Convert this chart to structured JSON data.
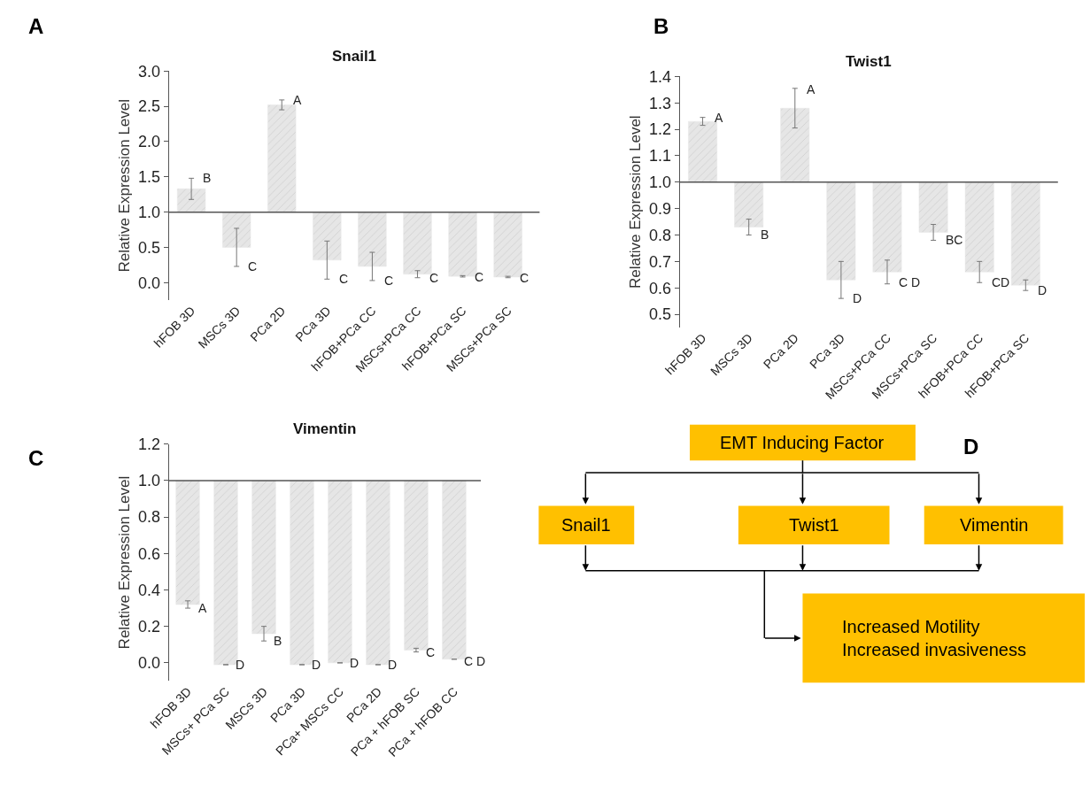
{
  "chart_data": [
    {
      "type": "bar",
      "title": "Snail1",
      "ylabel": "Relative Expression Level",
      "categories": [
        "hFOB 3D",
        "MSCs 3D",
        "PCa 2D",
        "PCa 3D",
        "hFOB+PCa CC",
        "MSCs+PCa CC",
        "hFOB+PCa SC",
        "MSCs+PCa SC"
      ],
      "base": [
        1.0,
        1.0,
        1.0,
        1.0,
        1.0,
        1.0,
        1.0,
        1.0
      ],
      "values": [
        0.33,
        -0.5,
        1.52,
        -0.68,
        -0.77,
        -0.88,
        -0.91,
        -0.92
      ],
      "errors": [
        0.15,
        0.27,
        0.07,
        0.27,
        0.2,
        0.05,
        0.01,
        0.01
      ],
      "color": "#e6e6e6",
      "ylim": [
        -0.25,
        3.0
      ],
      "yticks": [
        {
          "value": 0,
          "label": "0.0"
        },
        0.5,
        {
          "value": 1,
          "label": "1.0"
        },
        1.5,
        {
          "value": 2,
          "label": "2.0"
        },
        2.5,
        {
          "value": 3,
          "label": "3.0"
        }
      ],
      "ref_lines": [
        {
          "axis": "y",
          "value": 1.0,
          "color": "#555555"
        }
      ],
      "annotations": [
        "A",
        {
          "text": "B",
          "x": "hFOB 3D",
          "y": 1.48
        },
        {
          "text": "C",
          "x": "MSCs 3D",
          "y": 0.23
        },
        {
          "text": "A",
          "x": "PCa 2D",
          "y": 2.59
        },
        {
          "text": "C",
          "x": "PCa 3D",
          "y": 0.05
        },
        {
          "text": "C",
          "x": "hFOB+PCa CC",
          "y": 0.03
        },
        {
          "text": "C",
          "x": "MSCs+PCa CC",
          "y": 0.07
        },
        {
          "text": "C",
          "x": "hFOB+PCa SC",
          "y": 0.08
        },
        {
          "text": "C",
          "x": "MSCs+PCa SC",
          "y": 0.07
        }
      ]
    },
    {
      "type": "bar",
      "title": "Twist1",
      "ylabel": "Relative Expression Level",
      "categories": [
        "hFOB 3D",
        "MSCs 3D",
        "PCa 2D",
        "PCa 3D",
        "MSCs+PCa CC",
        "MSCs+PCa SC",
        "hFOB+PCa CC",
        "hFOB+PCa SC"
      ],
      "base": [
        1.0,
        1.0,
        1.0,
        1.0,
        1.0,
        1.0,
        1.0,
        1.0
      ],
      "values": [
        0.23,
        -0.17,
        0.28,
        -0.37,
        -0.34,
        -0.19,
        -0.34,
        -0.39
      ],
      "errors": [
        0.015,
        0.03,
        0.075,
        0.07,
        0.045,
        0.03,
        0.04,
        0.02
      ],
      "color": "#e6e6e6",
      "ylim": [
        0.45,
        1.4
      ],
      "yticks": [
        0.5,
        0.6,
        0.7,
        0.8,
        0.9,
        {
          "value": 1,
          "label": "1.0"
        },
        1.1,
        1.2,
        1.3,
        1.4
      ],
      "ref_lines": [
        {
          "axis": "y",
          "value": 1.0,
          "color": "#555555"
        }
      ],
      "annotations": [
        "B",
        {
          "text": "A",
          "x": "hFOB 3D",
          "y": 1.245
        },
        {
          "text": "B",
          "x": "MSCs 3D",
          "y": 0.8
        },
        {
          "text": "A",
          "x": "PCa 2D",
          "y": 1.35
        },
        {
          "text": "D",
          "x": "PCa 3D",
          "y": 0.56
        },
        {
          "text": "C D",
          "x": "MSCs+PCa CC",
          "y": 0.62
        },
        {
          "text": "BC",
          "x": "MSCs+PCa SC",
          "y": 0.78
        },
        {
          "text": "CD",
          "x": "hFOB+PCa CC",
          "y": 0.62
        },
        {
          "text": "D",
          "x": "hFOB+PCa SC",
          "y": 0.59
        }
      ]
    },
    {
      "type": "bar",
      "title": "Vimentin",
      "ylabel": "Relative Expression Level",
      "categories": [
        "hFOB 3D",
        "MSCs+ PCa SC",
        "MSCs 3D",
        "PCa 3D",
        "PCa+ MSCs CC",
        "PCa 2D",
        "PCa + hFOB SC",
        "PCa + hFOB CC"
      ],
      "base": [
        1.0,
        1.0,
        1.0,
        1.0,
        1.0,
        1.0,
        1.0,
        1.0
      ],
      "values": [
        -0.68,
        -1.01,
        -0.84,
        -1.01,
        -1.0,
        -1.01,
        -0.93,
        -0.98
      ],
      "errors": [
        0.02,
        null,
        0.04,
        null,
        null,
        null,
        0.01,
        null
      ],
      "color": "#e6e6e6",
      "ylim": [
        -0.1,
        1.2
      ],
      "yticks": [
        {
          "value": 0,
          "label": "0.0"
        },
        0.2,
        0.4,
        0.6,
        0.8,
        {
          "value": 1,
          "label": "1.0"
        },
        1.2
      ],
      "ref_lines": [
        {
          "axis": "y",
          "value": 1.0,
          "color": "#555555"
        }
      ],
      "annotations": [
        "C",
        {
          "text": "A",
          "x": "hFOB 3D",
          "y": 0.3
        },
        {
          "text": "D",
          "x": "MSCs+ PCa SC",
          "y": -0.01
        },
        {
          "text": "B",
          "x": "MSCs 3D",
          "y": 0.12
        },
        {
          "text": "D",
          "x": "PCa 3D",
          "y": -0.01
        },
        {
          "text": "D",
          "x": "PCa+ MSCs CC",
          "y": 0.0
        },
        {
          "text": "D",
          "x": "PCa 2D",
          "y": -0.01
        },
        {
          "text": "C",
          "x": "PCa + hFOB SC",
          "y": 0.06
        },
        {
          "text": "C D",
          "x": "PCa + hFOB CC",
          "y": 0.01
        }
      ]
    },
    {
      "type": "other",
      "color": "#ffc000",
      "annotations": [
        "D",
        "EMT Inducing Factor",
        "Snail1",
        "Twist1",
        "Vimentin",
        "Increased Motility\nIncreased invasiveness"
      ]
    }
  ]
}
